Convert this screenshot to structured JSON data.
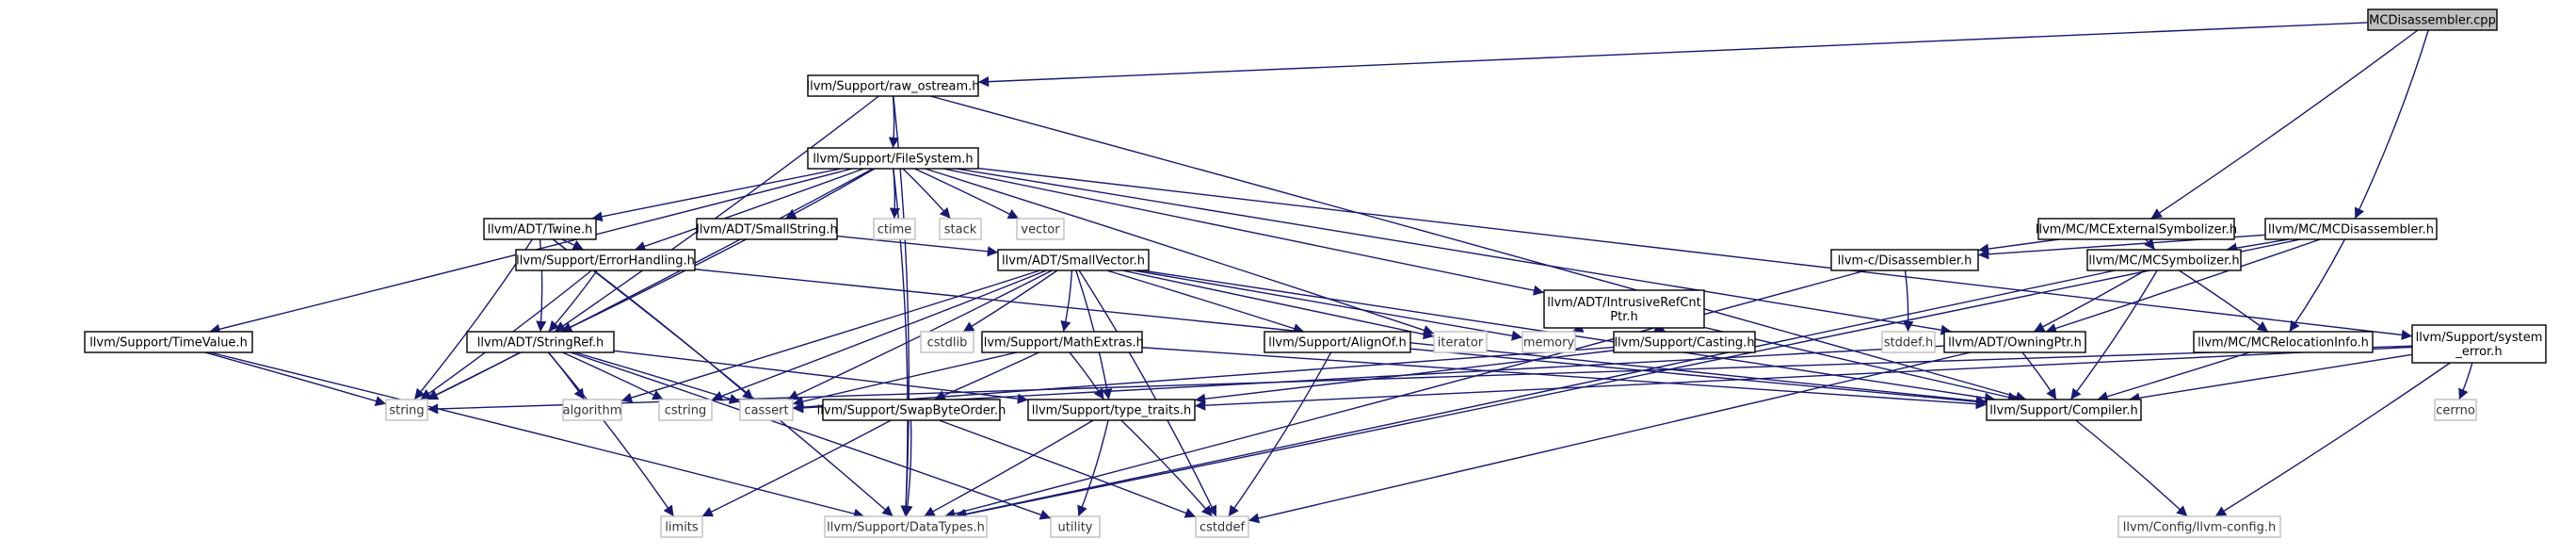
{
  "diagram": {
    "nodes": {
      "mcdisassembler_cpp": {
        "lines": [
          "MCDisassembler.cpp"
        ],
        "style": "root"
      },
      "raw_ostream": {
        "lines": [
          "llvm/Support/raw_ostream.h"
        ],
        "style": "primary"
      },
      "filesystem": {
        "lines": [
          "llvm/Support/FileSystem.h"
        ],
        "style": "primary"
      },
      "twine": {
        "lines": [
          "llvm/ADT/Twine.h"
        ],
        "style": "primary"
      },
      "smallstring": {
        "lines": [
          "llvm/ADT/SmallString.h"
        ],
        "style": "primary"
      },
      "ctime": {
        "lines": [
          "ctime"
        ],
        "style": "external"
      },
      "stack": {
        "lines": [
          "stack"
        ],
        "style": "external"
      },
      "vector": {
        "lines": [
          "vector"
        ],
        "style": "external"
      },
      "intrusiverefcntptr": {
        "lines": [
          "llvm/ADT/IntrusiveRefCnt",
          "Ptr.h"
        ],
        "style": "primary"
      },
      "mcexternalsymbolizer": {
        "lines": [
          "llvm/MC/MCExternalSymbolizer.h"
        ],
        "style": "primary"
      },
      "mcdisassembler_h": {
        "lines": [
          "llvm/MC/MCDisassembler.h"
        ],
        "style": "primary"
      },
      "errorhandling": {
        "lines": [
          "llvm/Support/ErrorHandling.h"
        ],
        "style": "primary"
      },
      "smallvector": {
        "lines": [
          "llvm/ADT/SmallVector.h"
        ],
        "style": "primary"
      },
      "llvmc_disassembler": {
        "lines": [
          "llvm-c/Disassembler.h"
        ],
        "style": "primary"
      },
      "mcsymbolizer": {
        "lines": [
          "llvm/MC/MCSymbolizer.h"
        ],
        "style": "primary"
      },
      "stddef_h": {
        "lines": [
          "stddef.h"
        ],
        "style": "external"
      },
      "timevalue": {
        "lines": [
          "llvm/Support/TimeValue.h"
        ],
        "style": "primary"
      },
      "stringref": {
        "lines": [
          "llvm/ADT/StringRef.h"
        ],
        "style": "primary"
      },
      "cstdlib": {
        "lines": [
          "cstdlib"
        ],
        "style": "external"
      },
      "mathextras": {
        "lines": [
          "llvm/Support/MathExtras.h"
        ],
        "style": "primary"
      },
      "alignof": {
        "lines": [
          "llvm/Support/AlignOf.h"
        ],
        "style": "primary"
      },
      "iterator": {
        "lines": [
          "iterator"
        ],
        "style": "external"
      },
      "memory": {
        "lines": [
          "memory"
        ],
        "style": "external"
      },
      "casting": {
        "lines": [
          "llvm/Support/Casting.h"
        ],
        "style": "primary"
      },
      "owningptr": {
        "lines": [
          "llvm/ADT/OwningPtr.h"
        ],
        "style": "primary"
      },
      "mcrelocationinfo": {
        "lines": [
          "llvm/MC/MCRelocationInfo.h"
        ],
        "style": "primary"
      },
      "system_error": {
        "lines": [
          "llvm/Support/system",
          "_error.h"
        ],
        "style": "primary"
      },
      "string": {
        "lines": [
          "string"
        ],
        "style": "external"
      },
      "algorithm": {
        "lines": [
          "algorithm"
        ],
        "style": "external"
      },
      "cstring": {
        "lines": [
          "cstring"
        ],
        "style": "external"
      },
      "cassert": {
        "lines": [
          "cassert"
        ],
        "style": "external"
      },
      "swapbyteorder": {
        "lines": [
          "llvm/Support/SwapByteOrder.h"
        ],
        "style": "primary"
      },
      "type_traits": {
        "lines": [
          "llvm/Support/type_traits.h"
        ],
        "style": "primary"
      },
      "compiler": {
        "lines": [
          "llvm/Support/Compiler.h"
        ],
        "style": "primary"
      },
      "cerrno": {
        "lines": [
          "cerrno"
        ],
        "style": "external"
      },
      "limits": {
        "lines": [
          "limits"
        ],
        "style": "external"
      },
      "datatypes": {
        "lines": [
          "llvm/Support/DataTypes.h"
        ],
        "style": "external"
      },
      "utility": {
        "lines": [
          "utility"
        ],
        "style": "external"
      },
      "cstddef": {
        "lines": [
          "cstddef"
        ],
        "style": "external"
      },
      "llvm_config": {
        "lines": [
          "llvm/Config/llvm-config.h"
        ],
        "style": "external"
      }
    },
    "edges": [
      [
        "mcdisassembler_cpp",
        "raw_ostream"
      ],
      [
        "mcdisassembler_cpp",
        "mcexternalsymbolizer"
      ],
      [
        "mcdisassembler_cpp",
        "mcdisassembler_h"
      ],
      [
        "raw_ostream",
        "filesystem"
      ],
      [
        "raw_ostream",
        "stringref"
      ],
      [
        "raw_ostream",
        "compiler"
      ],
      [
        "raw_ostream",
        "datatypes"
      ],
      [
        "filesystem",
        "twine"
      ],
      [
        "filesystem",
        "smallstring"
      ],
      [
        "filesystem",
        "ctime"
      ],
      [
        "filesystem",
        "stack"
      ],
      [
        "filesystem",
        "vector"
      ],
      [
        "filesystem",
        "intrusiverefcntptr"
      ],
      [
        "filesystem",
        "owningptr"
      ],
      [
        "filesystem",
        "system_error"
      ],
      [
        "filesystem",
        "errorhandling"
      ],
      [
        "filesystem",
        "timevalue"
      ],
      [
        "filesystem",
        "iterator"
      ],
      [
        "filesystem",
        "string"
      ],
      [
        "filesystem",
        "datatypes"
      ],
      [
        "twine",
        "errorhandling"
      ],
      [
        "twine",
        "stringref"
      ],
      [
        "twine",
        "string"
      ],
      [
        "twine",
        "cassert"
      ],
      [
        "twine",
        "datatypes"
      ],
      [
        "smallstring",
        "smallvector"
      ],
      [
        "smallstring",
        "stringref"
      ],
      [
        "intrusiverefcntptr",
        "casting"
      ],
      [
        "intrusiverefcntptr",
        "memory"
      ],
      [
        "intrusiverefcntptr",
        "compiler"
      ],
      [
        "mcexternalsymbolizer",
        "mcsymbolizer"
      ],
      [
        "mcexternalsymbolizer",
        "llvmc_disassembler"
      ],
      [
        "mcdisassembler_h",
        "llvmc_disassembler"
      ],
      [
        "mcdisassembler_h",
        "mcsymbolizer"
      ],
      [
        "mcdisassembler_h",
        "mcrelocationinfo"
      ],
      [
        "mcdisassembler_h",
        "owningptr"
      ],
      [
        "mcdisassembler_h",
        "datatypes"
      ],
      [
        "errorhandling",
        "stringref"
      ],
      [
        "errorhandling",
        "compiler"
      ],
      [
        "errorhandling",
        "string"
      ],
      [
        "smallvector",
        "alignof"
      ],
      [
        "smallvector",
        "mathextras"
      ],
      [
        "smallvector",
        "type_traits"
      ],
      [
        "smallvector",
        "algorithm"
      ],
      [
        "smallvector",
        "cassert"
      ],
      [
        "smallvector",
        "cstddef"
      ],
      [
        "smallvector",
        "cstdlib"
      ],
      [
        "smallvector",
        "cstring"
      ],
      [
        "smallvector",
        "iterator"
      ],
      [
        "smallvector",
        "memory"
      ],
      [
        "smallvector",
        "compiler"
      ],
      [
        "llvmc_disassembler",
        "stddef_h"
      ],
      [
        "llvmc_disassembler",
        "datatypes"
      ],
      [
        "mcsymbolizer",
        "owningptr"
      ],
      [
        "mcsymbolizer",
        "compiler"
      ],
      [
        "mcsymbolizer",
        "datatypes"
      ],
      [
        "mcsymbolizer",
        "mcrelocationinfo"
      ],
      [
        "timevalue",
        "datatypes"
      ],
      [
        "timevalue",
        "string"
      ],
      [
        "stringref",
        "type_traits"
      ],
      [
        "stringref",
        "algorithm"
      ],
      [
        "stringref",
        "cassert"
      ],
      [
        "stringref",
        "cstring"
      ],
      [
        "stringref",
        "limits"
      ],
      [
        "stringref",
        "string"
      ],
      [
        "stringref",
        "utility"
      ],
      [
        "mathextras",
        "swapbyteorder"
      ],
      [
        "mathextras",
        "type_traits"
      ],
      [
        "mathextras",
        "compiler"
      ],
      [
        "mathextras",
        "cassert"
      ],
      [
        "alignof",
        "compiler"
      ],
      [
        "alignof",
        "cstddef"
      ],
      [
        "casting",
        "type_traits"
      ],
      [
        "casting",
        "cassert"
      ],
      [
        "owningptr",
        "compiler"
      ],
      [
        "owningptr",
        "cassert"
      ],
      [
        "owningptr",
        "cstddef"
      ],
      [
        "mcrelocationinfo",
        "compiler"
      ],
      [
        "system_error",
        "cerrno"
      ],
      [
        "system_error",
        "string"
      ],
      [
        "system_error",
        "type_traits"
      ],
      [
        "system_error",
        "compiler"
      ],
      [
        "system_error",
        "llvm_config"
      ],
      [
        "swapbyteorder",
        "datatypes"
      ],
      [
        "swapbyteorder",
        "limits"
      ],
      [
        "swapbyteorder",
        "cstddef"
      ],
      [
        "type_traits",
        "datatypes"
      ],
      [
        "type_traits",
        "cstddef"
      ],
      [
        "type_traits",
        "utility"
      ],
      [
        "compiler",
        "llvm_config"
      ]
    ]
  }
}
